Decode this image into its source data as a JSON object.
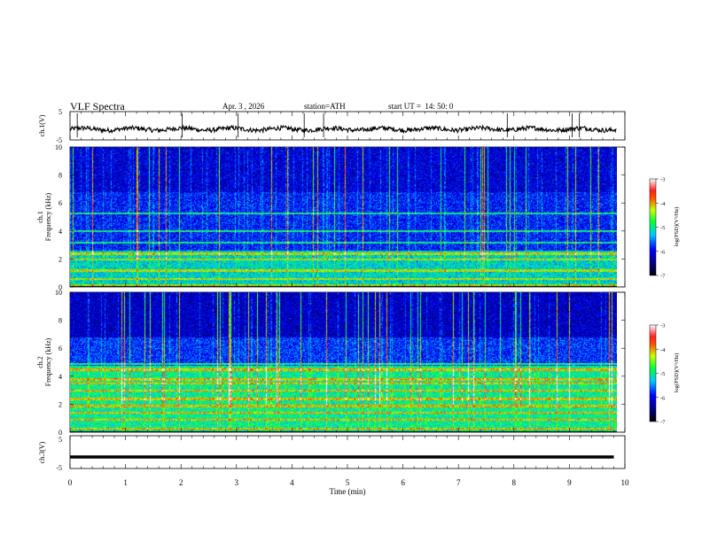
{
  "header": {
    "title": "VLF Spectra",
    "date": "Apr. 3 , 2026",
    "station": "station=ATH",
    "start": "start UT =  14: 50: 0"
  },
  "chart_data": [
    {
      "type": "line",
      "panel": "ch1-waveform",
      "ylabel": "ch.1(V)",
      "yticks": [
        "5",
        "-5"
      ],
      "ylim": [
        -5,
        5
      ],
      "xlim": [
        0,
        10
      ],
      "mean_level": -1.2,
      "spikes_min": [
        0.13,
        2.02,
        3.03,
        4.22,
        4.57,
        7.88,
        9.05,
        9.18
      ]
    },
    {
      "type": "heatmap",
      "panel": "ch1-spectrogram",
      "ylabel_top": "ch.1",
      "ylabel": "Frequency (kHz)",
      "yticks": [
        "0",
        "2",
        "4",
        "6",
        "8",
        "10"
      ],
      "ylim": [
        0,
        10
      ],
      "xlim": [
        0,
        10
      ],
      "colorbar_label": "log(PSD)(V²/Hz)",
      "colorbar_ticks": [
        "-3",
        "-4",
        "-5",
        "-6",
        "-7"
      ],
      "colorbar_range": [
        -7,
        -3
      ]
    },
    {
      "type": "heatmap",
      "panel": "ch2-spectrogram",
      "ylabel_top": "ch.2",
      "ylabel": "Frequency (kHz)",
      "yticks": [
        "0",
        "2",
        "4",
        "6",
        "8",
        "10"
      ],
      "ylim": [
        0,
        10
      ],
      "xlim": [
        0,
        10
      ],
      "colorbar_label": "log(PSD)(V²/Hz)",
      "colorbar_ticks": [
        "-3",
        "-4",
        "-5",
        "-6",
        "-7"
      ],
      "colorbar_range": [
        -7,
        -3
      ]
    },
    {
      "type": "line",
      "panel": "ch3-waveform",
      "ylabel": "ch.3(V)",
      "yticks": [
        "5",
        "-5"
      ],
      "ylim": [
        -5,
        5
      ],
      "xlim": [
        0,
        10
      ],
      "mean_level": -1.5
    }
  ],
  "xaxis": {
    "label": "Time (min)",
    "ticks": [
      "0",
      "1",
      "2",
      "3",
      "4",
      "5",
      "6",
      "7",
      "8",
      "9",
      "10"
    ],
    "data_end_min": 9.85
  }
}
